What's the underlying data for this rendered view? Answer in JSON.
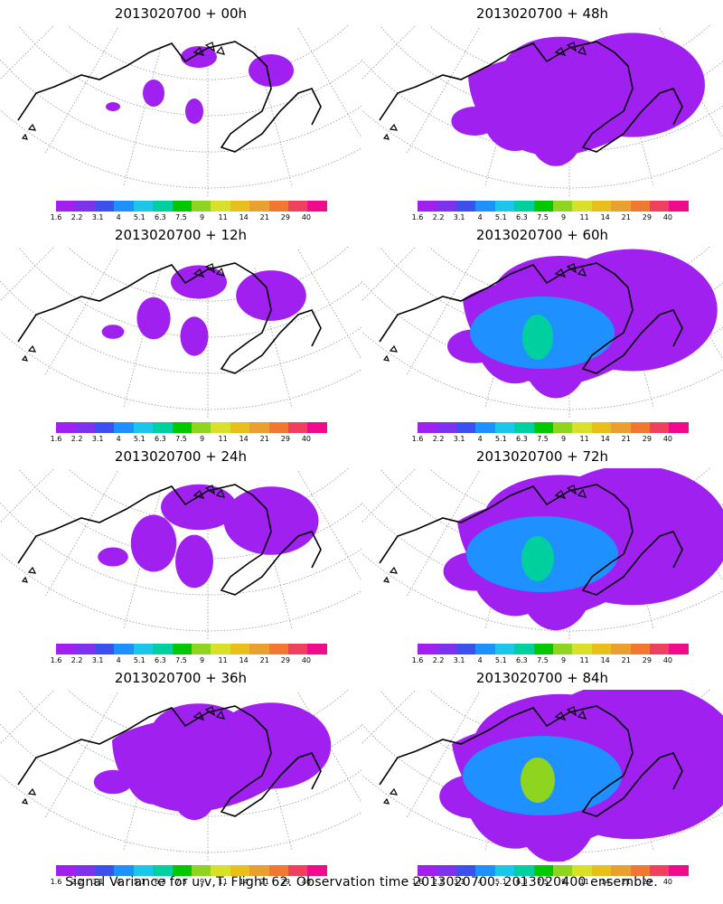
{
  "panels": [
    {
      "title": "2013020700 + 00h",
      "level": 0
    },
    {
      "title": "2013020700 + 48h",
      "level": 4
    },
    {
      "title": "2013020700 + 12h",
      "level": 1
    },
    {
      "title": "2013020700 + 60h",
      "level": 5
    },
    {
      "title": "2013020700 + 24h",
      "level": 2
    },
    {
      "title": "2013020700 + 72h",
      "level": 6
    },
    {
      "title": "2013020700 + 36h",
      "level": 3
    },
    {
      "title": "2013020700 + 84h",
      "level": 7
    }
  ],
  "colorbar": {
    "labels": [
      "1.6",
      "2.2",
      "3.1",
      "4",
      "5.1",
      "6.3",
      "7.5",
      "9",
      "11",
      "14",
      "21",
      "29",
      "40"
    ],
    "colors": [
      "#a020f0",
      "#7f32ee",
      "#3c50f0",
      "#1e90ff",
      "#1cc6e8",
      "#00d0a0",
      "#00c800",
      "#8fd41e",
      "#d8e02a",
      "#e8c01c",
      "#e8a030",
      "#f07830",
      "#f04060",
      "#f00a8c"
    ]
  },
  "caption": "Signal Variance for u,v,T. Flight 62. Observation time 2013020700. 2013020400 ensemble."
}
